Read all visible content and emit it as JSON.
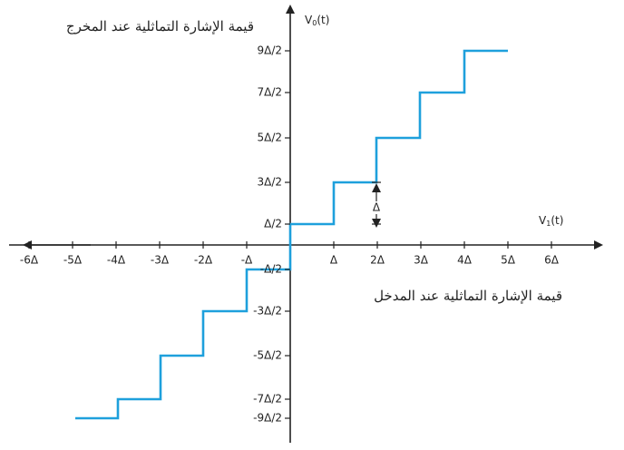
{
  "y_axis": {
    "title": "قيمة الإشارة التماثلية عند المخرج",
    "symbol": "V",
    "subscript": "0",
    "argument": "(t)",
    "tick_labels": [
      "9Δ/2",
      "7Δ/2",
      "5Δ/2",
      "3Δ/2",
      "Δ/2",
      "-Δ/2",
      "-3Δ/2",
      "-5Δ/2",
      "-7Δ/2",
      "-9Δ/2"
    ]
  },
  "x_axis": {
    "title": "قيمة الإشارة التماثلية عند المدخل",
    "symbol": "V",
    "subscript": "1",
    "argument": "(t)",
    "tick_labels": [
      "-6Δ",
      "-5Δ",
      "-4Δ",
      "-3Δ",
      "-2Δ",
      "-Δ",
      "Δ",
      "2Δ",
      "3Δ",
      "4Δ",
      "5Δ",
      "6Δ"
    ]
  },
  "step_annotation": "Δ"
}
